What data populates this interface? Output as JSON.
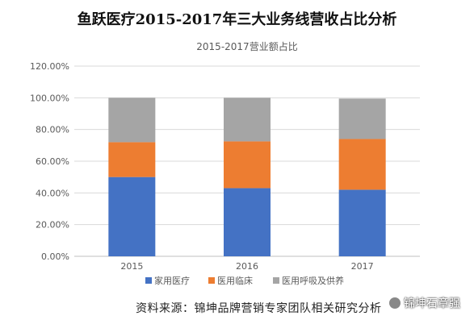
{
  "main_title": "鱼跃医疗2015-2017年三大业务线营收占比分析",
  "source_text": "资料来源：锦坤品牌营销专家团队相关研究分析",
  "watermark_text": "锦坤石章强",
  "chart_data": {
    "type": "bar",
    "stacked": true,
    "title": "2015-2017营业额占比",
    "categories": [
      "2015",
      "2016",
      "2017"
    ],
    "series": [
      {
        "name": "家用医疗",
        "color": "#4472C4",
        "values": [
          50,
          43,
          42
        ]
      },
      {
        "name": "医用临床",
        "color": "#ED7D31",
        "values": [
          22,
          29.5,
          32
        ]
      },
      {
        "name": "医用呼吸及供养",
        "color": "#A5A5A5",
        "values": [
          28,
          27.5,
          25.5
        ]
      }
    ],
    "yticks": [
      "0.00%",
      "20.00%",
      "40.00%",
      "60.00%",
      "80.00%",
      "100.00%",
      "120.00%"
    ],
    "ylim": [
      0,
      120
    ],
    "grid": true,
    "legend_position": "bottom"
  }
}
